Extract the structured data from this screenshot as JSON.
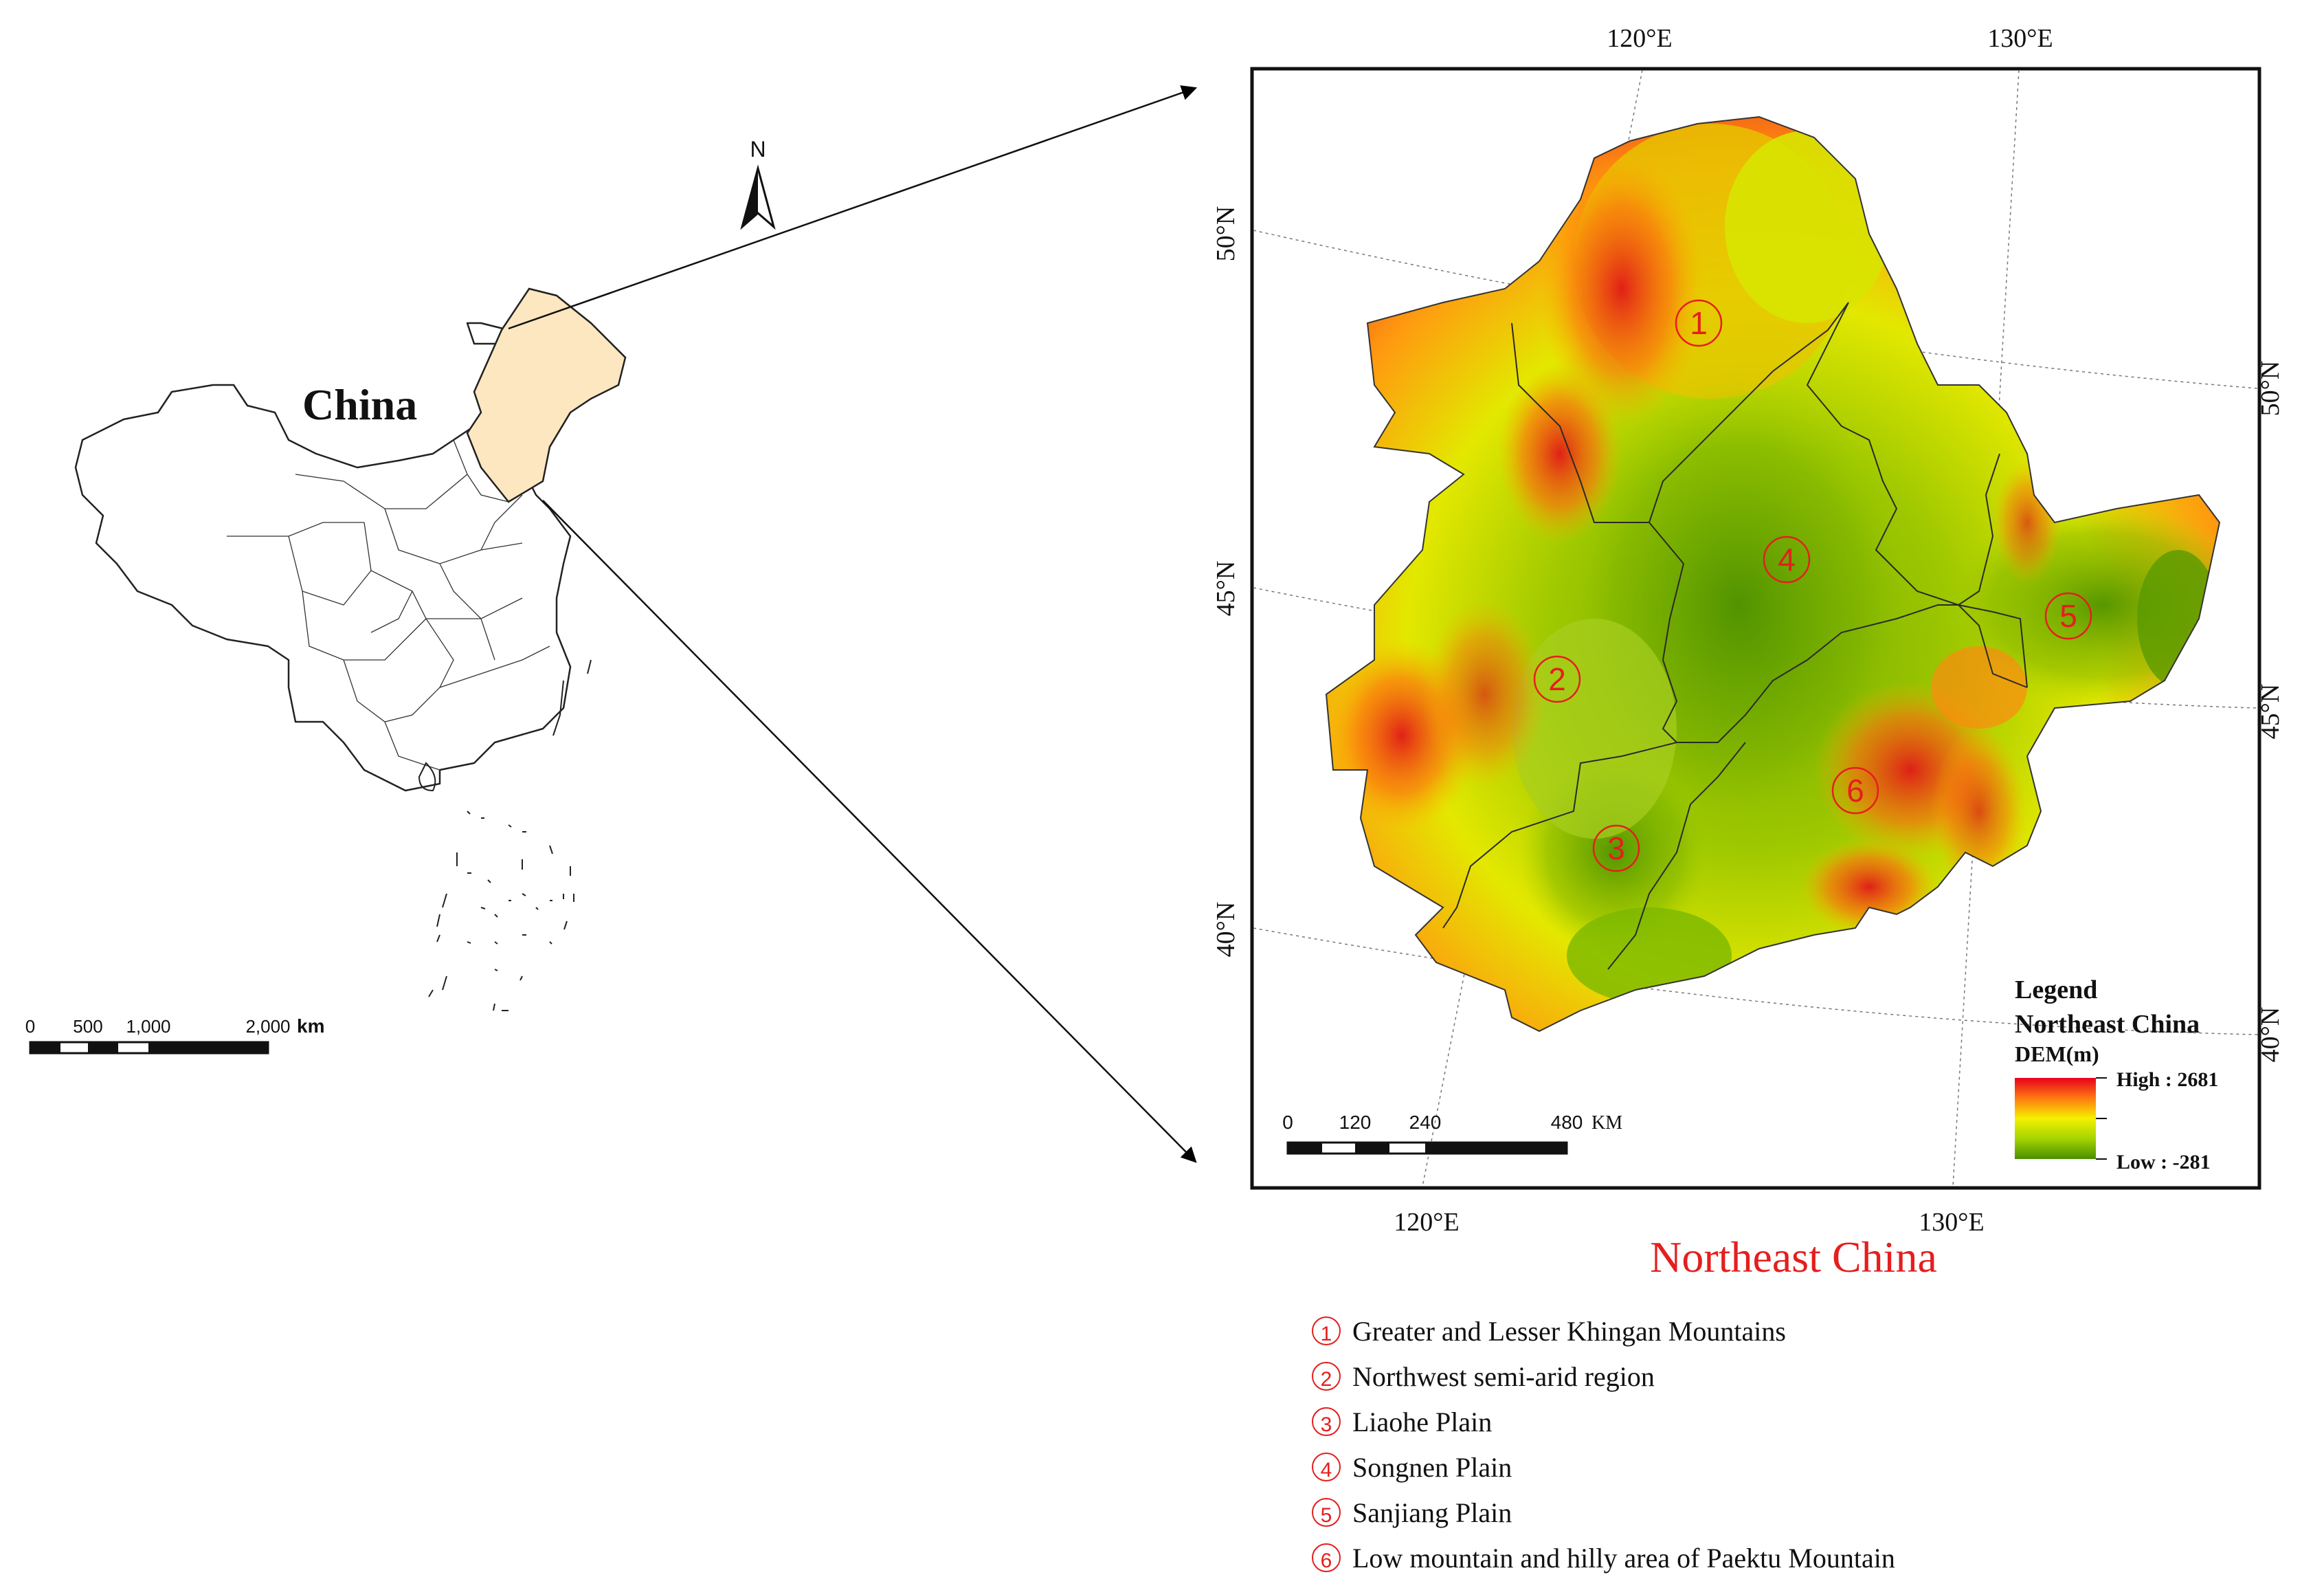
{
  "china_panel": {
    "title": "China",
    "north_label": "N",
    "scale_ticks": [
      "0",
      "500",
      "1,000",
      "2,000"
    ],
    "scale_unit": "km",
    "highlight_color": "#fce7c0"
  },
  "detail_map": {
    "top_lon_labels": [
      "120°E",
      "130°E"
    ],
    "bottom_lon_labels": [
      "120°E",
      "130°E"
    ],
    "left_lat_labels": [
      "50°N",
      "45°N",
      "40°N"
    ],
    "right_lat_labels": [
      "50°N",
      "45°N",
      "40°N"
    ],
    "region_markers": [
      "①",
      "②",
      "③",
      "④",
      "⑤",
      "⑥"
    ],
    "scale_ticks": [
      "0",
      "120",
      "240",
      "480"
    ],
    "scale_unit": "KM",
    "legend": {
      "title": "Legend",
      "subtitle": "Northeast China",
      "variable": "DEM(m)",
      "high_label": "High : 2681",
      "low_label": "Low : -281",
      "gradient_colors": [
        "#e8001e",
        "#ff7a10",
        "#f5f000",
        "#a4d400",
        "#4a8e00"
      ]
    },
    "caption": "Northeast China",
    "caption_color": "#e51e1e"
  },
  "region_list": [
    {
      "marker": "①",
      "name": "Greater and Lesser Khingan Mountains"
    },
    {
      "marker": "②",
      "name": "Northwest semi-arid region"
    },
    {
      "marker": "③",
      "name": "Liaohe Plain"
    },
    {
      "marker": "④",
      "name": "Songnen Plain"
    },
    {
      "marker": "⑤",
      "name": "Sanjiang Plain"
    },
    {
      "marker": "⑥",
      "name": "Low mountain and hilly area of Paektu Mountain"
    }
  ]
}
